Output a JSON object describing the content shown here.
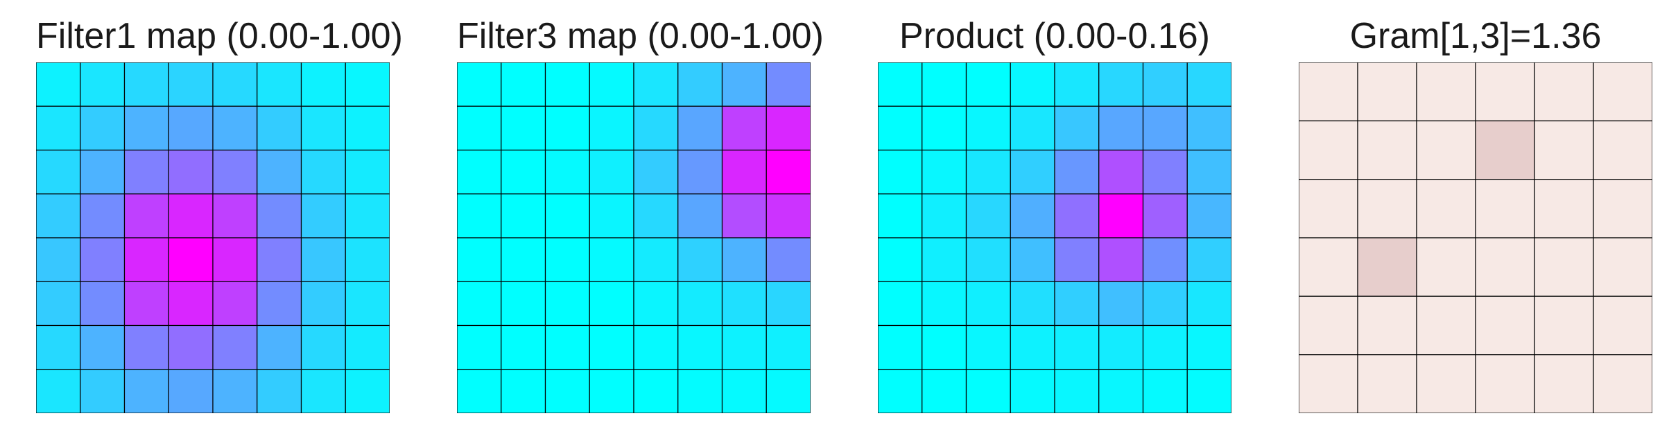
{
  "chart_data": [
    {
      "type": "heatmap",
      "title": "Filter1 map (0.00-1.00)",
      "range": [
        0.0,
        1.0
      ],
      "colormap": "cool",
      "grid": true,
      "rows": 8,
      "cols": 8,
      "values": [
        [
          0.05,
          0.1,
          0.15,
          0.17,
          0.15,
          0.1,
          0.05,
          0.03
        ],
        [
          0.1,
          0.2,
          0.3,
          0.34,
          0.3,
          0.2,
          0.1,
          0.05
        ],
        [
          0.15,
          0.3,
          0.5,
          0.57,
          0.5,
          0.3,
          0.15,
          0.08
        ],
        [
          0.2,
          0.45,
          0.75,
          0.85,
          0.75,
          0.45,
          0.2,
          0.1
        ],
        [
          0.22,
          0.5,
          0.85,
          1.0,
          0.85,
          0.5,
          0.22,
          0.11
        ],
        [
          0.2,
          0.45,
          0.75,
          0.85,
          0.75,
          0.45,
          0.2,
          0.1
        ],
        [
          0.15,
          0.3,
          0.5,
          0.57,
          0.5,
          0.3,
          0.15,
          0.08
        ],
        [
          0.1,
          0.2,
          0.3,
          0.34,
          0.3,
          0.2,
          0.1,
          0.05
        ]
      ]
    },
    {
      "type": "heatmap",
      "title": "Filter3 map (0.00-1.00)",
      "range": [
        0.0,
        1.0
      ],
      "colormap": "cool",
      "grid": true,
      "rows": 8,
      "cols": 8,
      "values": [
        [
          0.0,
          0.0,
          0.0,
          0.02,
          0.1,
          0.2,
          0.3,
          0.45
        ],
        [
          0.0,
          0.0,
          0.0,
          0.04,
          0.15,
          0.35,
          0.75,
          0.85
        ],
        [
          0.0,
          0.0,
          0.02,
          0.06,
          0.2,
          0.4,
          0.85,
          1.0
        ],
        [
          0.0,
          0.0,
          0.0,
          0.04,
          0.15,
          0.35,
          0.7,
          0.8
        ],
        [
          0.0,
          0.0,
          0.0,
          0.02,
          0.08,
          0.18,
          0.3,
          0.45
        ],
        [
          0.0,
          0.0,
          0.0,
          0.0,
          0.04,
          0.08,
          0.12,
          0.16
        ],
        [
          0.0,
          0.0,
          0.0,
          0.0,
          0.02,
          0.03,
          0.05,
          0.06
        ],
        [
          0.0,
          0.0,
          0.0,
          0.0,
          0.0,
          0.01,
          0.02,
          0.02
        ]
      ]
    },
    {
      "type": "heatmap",
      "title": "Product (0.00-0.16)",
      "range": [
        0.0,
        0.16
      ],
      "colormap": "cool",
      "grid": true,
      "rows": 8,
      "cols": 8,
      "values": [
        [
          0.0,
          0.0,
          0.0,
          0.005,
          0.015,
          0.025,
          0.03,
          0.025
        ],
        [
          0.0,
          0.0,
          0.005,
          0.015,
          0.035,
          0.055,
          0.055,
          0.04
        ],
        [
          0.0,
          0.005,
          0.015,
          0.03,
          0.065,
          0.11,
          0.08,
          0.04
        ],
        [
          0.0,
          0.01,
          0.025,
          0.05,
          0.09,
          0.16,
          0.1,
          0.045
        ],
        [
          0.0,
          0.01,
          0.02,
          0.04,
          0.08,
          0.11,
          0.07,
          0.03
        ],
        [
          0.0,
          0.005,
          0.01,
          0.02,
          0.03,
          0.04,
          0.03,
          0.015
        ],
        [
          0.0,
          0.0,
          0.005,
          0.008,
          0.01,
          0.012,
          0.008,
          0.005
        ],
        [
          0.0,
          0.0,
          0.0,
          0.003,
          0.005,
          0.005,
          0.003,
          0.002
        ]
      ]
    },
    {
      "type": "heatmap",
      "title": "Gram[1,3]=1.36",
      "colormap": "reds",
      "grid": true,
      "rows": 6,
      "cols": 6,
      "values": [
        [
          0.05,
          0.05,
          0.05,
          0.05,
          0.05,
          0.05
        ],
        [
          0.05,
          0.05,
          0.05,
          0.16,
          0.05,
          0.05
        ],
        [
          0.05,
          0.05,
          0.05,
          0.05,
          0.05,
          0.05
        ],
        [
          0.05,
          0.16,
          0.05,
          0.05,
          0.05,
          0.05
        ],
        [
          0.05,
          0.05,
          0.05,
          0.05,
          0.05,
          0.05
        ],
        [
          0.05,
          0.05,
          0.05,
          0.05,
          0.05,
          0.05
        ]
      ]
    }
  ],
  "colors": {
    "cool_low": "#00ffff",
    "cool_high": "#ff00ff",
    "reds_low": "#fff5f0",
    "reds_high": "#67000d",
    "gridline": "#000000"
  }
}
